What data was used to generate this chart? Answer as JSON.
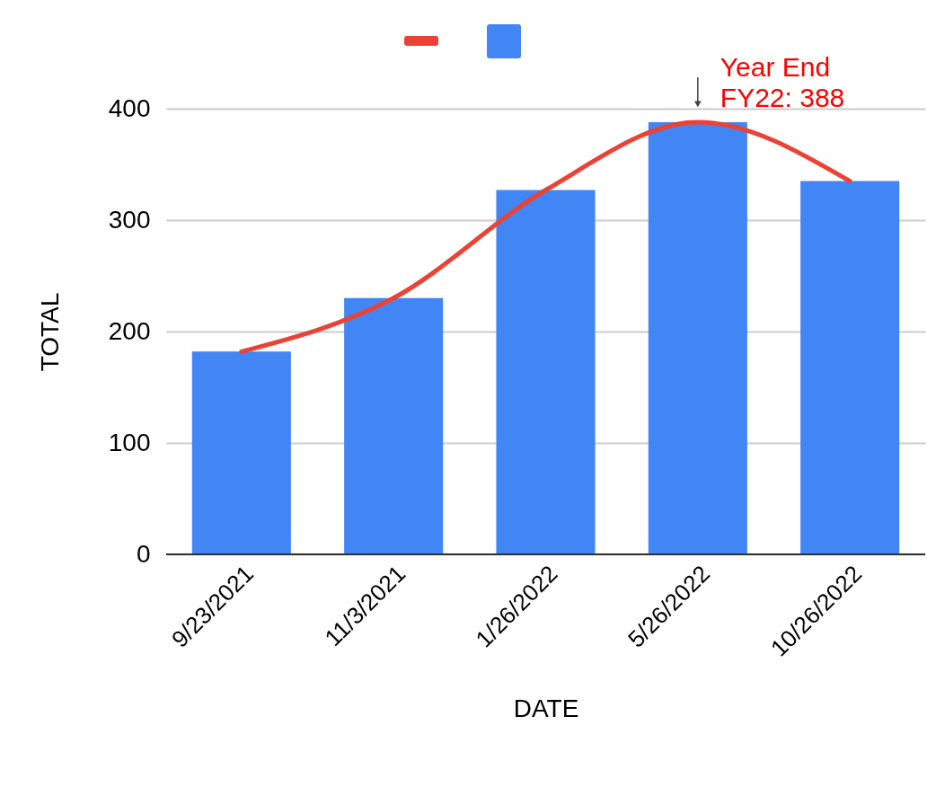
{
  "chart_data": {
    "type": "bar",
    "xlabel": "DATE",
    "ylabel": "TOTAL",
    "categories": [
      "9/23/2021",
      "11/3/2021",
      "1/26/2022",
      "5/26/2022",
      "10/26/2022"
    ],
    "series": [
      {
        "type": "line",
        "color": "#ea4335",
        "values": [
          182,
          230,
          327,
          388,
          335
        ]
      },
      {
        "color": "#4285f4",
        "values": [
          182,
          230,
          327,
          388,
          335
        ]
      }
    ],
    "ylim": [
      0,
      400
    ],
    "yticks": [
      0,
      100,
      200,
      300,
      400
    ],
    "grid": "y",
    "annotations": [
      {
        "text": "Year End\nFY22:  388",
        "x": "5/26/2022",
        "y": 388
      }
    ]
  }
}
